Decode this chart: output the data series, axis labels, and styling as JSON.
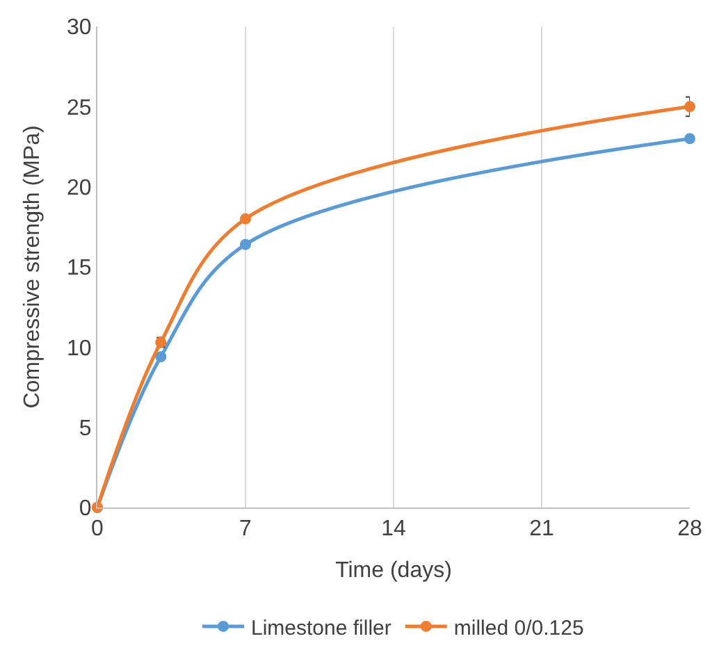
{
  "chart_data": {
    "type": "line",
    "xlabel": "Time (days)",
    "ylabel": "Compressive strength (MPa)",
    "x": [
      0,
      3,
      7,
      28
    ],
    "series": [
      {
        "name": "Limestone filler",
        "color": "#5b9bd5",
        "values": [
          0,
          9.4,
          16.4,
          23
        ]
      },
      {
        "name": "milled 0/0.125",
        "color": "#ed7d31",
        "values": [
          0,
          10.3,
          18,
          25
        ],
        "errors": [
          null,
          0.3,
          null,
          0.6
        ]
      }
    ],
    "xlim": [
      0,
      28
    ],
    "xticks": [
      0,
      7,
      14,
      21,
      28
    ],
    "ylim": [
      0,
      30
    ],
    "yticks": [
      0,
      5,
      10,
      15,
      20,
      25,
      30
    ],
    "grid": "x",
    "legend": "bottom",
    "marker": "circle",
    "line_style": "solid"
  }
}
